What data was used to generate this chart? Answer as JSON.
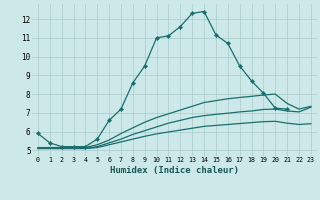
{
  "xlabel": "Humidex (Indice chaleur)",
  "bg_color": "#cce8e8",
  "line_color": "#1a6e6e",
  "grid_color": "#aacccc",
  "xlim": [
    -0.5,
    23.5
  ],
  "ylim": [
    4.7,
    12.8
  ],
  "xticks": [
    0,
    1,
    2,
    3,
    4,
    5,
    6,
    7,
    8,
    9,
    10,
    11,
    12,
    13,
    14,
    15,
    16,
    17,
    18,
    19,
    20,
    21,
    22,
    23
  ],
  "yticks": [
    5,
    6,
    7,
    8,
    9,
    10,
    11,
    12
  ],
  "series": [
    {
      "x": [
        0,
        1,
        2,
        3,
        4,
        5,
        6,
        7,
        8,
        9,
        10,
        11,
        12,
        13,
        14,
        15,
        16,
        17,
        18,
        19,
        20,
        21
      ],
      "y": [
        5.9,
        5.4,
        5.2,
        5.2,
        5.2,
        5.6,
        6.6,
        7.2,
        8.6,
        9.5,
        11.0,
        11.1,
        11.6,
        12.3,
        12.4,
        11.15,
        10.7,
        9.5,
        8.7,
        8.05,
        7.25,
        7.2
      ],
      "markers": true
    },
    {
      "x": [
        0,
        1,
        2,
        3,
        4,
        5,
        6,
        7,
        8,
        9,
        10,
        11,
        12,
        13,
        14,
        15,
        16,
        17,
        18,
        19,
        20,
        21,
        22,
        23
      ],
      "y": [
        5.15,
        5.15,
        5.15,
        5.15,
        5.15,
        5.3,
        5.55,
        5.9,
        6.2,
        6.5,
        6.75,
        6.95,
        7.15,
        7.35,
        7.55,
        7.65,
        7.75,
        7.82,
        7.88,
        7.95,
        8.0,
        7.5,
        7.2,
        7.35
      ],
      "markers": false
    },
    {
      "x": [
        0,
        1,
        2,
        3,
        4,
        5,
        6,
        7,
        8,
        9,
        10,
        11,
        12,
        13,
        14,
        15,
        16,
        17,
        18,
        19,
        20,
        21,
        22,
        23
      ],
      "y": [
        5.1,
        5.1,
        5.1,
        5.1,
        5.1,
        5.2,
        5.4,
        5.6,
        5.85,
        6.05,
        6.25,
        6.45,
        6.6,
        6.75,
        6.85,
        6.92,
        6.98,
        7.05,
        7.1,
        7.18,
        7.2,
        7.1,
        7.05,
        7.3
      ],
      "markers": false
    },
    {
      "x": [
        0,
        1,
        2,
        3,
        4,
        5,
        6,
        7,
        8,
        9,
        10,
        11,
        12,
        13,
        14,
        15,
        16,
        17,
        18,
        19,
        20,
        21,
        22,
        23
      ],
      "y": [
        5.1,
        5.1,
        5.1,
        5.1,
        5.1,
        5.15,
        5.3,
        5.45,
        5.6,
        5.75,
        5.88,
        5.98,
        6.08,
        6.18,
        6.28,
        6.33,
        6.38,
        6.43,
        6.48,
        6.53,
        6.55,
        6.45,
        6.38,
        6.42
      ],
      "markers": false
    }
  ]
}
